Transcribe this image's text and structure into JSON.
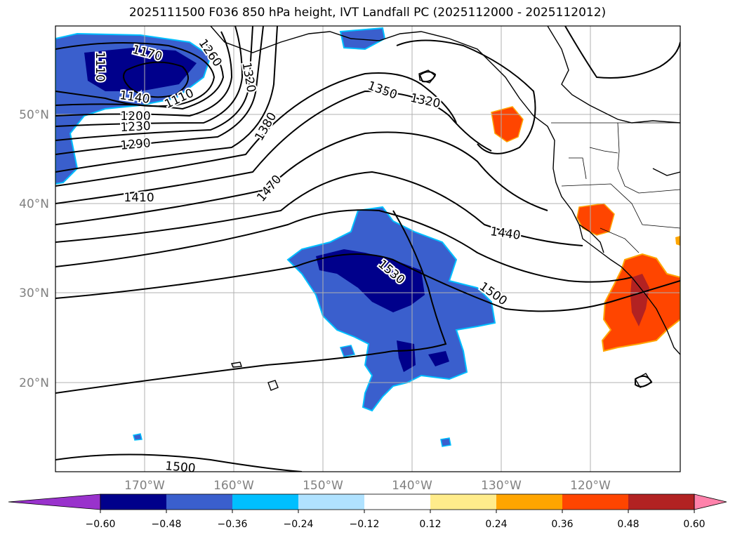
{
  "title": "2025111500 F036 850 hPa height, IVT Landfall PC (2025112000 - 2025112012)",
  "map": {
    "lon_ticks": [
      "170°W",
      "160°W",
      "150°W",
      "140°W",
      "130°W",
      "120°W"
    ],
    "lat_ticks": [
      "50°N",
      "40°N",
      "30°N",
      "20°N"
    ],
    "tick_color": "#808080",
    "grid": true
  },
  "contour_labels": [
    "1170",
    "1110",
    "1260",
    "1320",
    "1140",
    "1110",
    "1200",
    "1230",
    "1290",
    "1380",
    "1350",
    "1320",
    "1410",
    "1470",
    "1440",
    "1530",
    "1500",
    "1500"
  ],
  "colorbar": {
    "ticks": [
      "−0.60",
      "−0.48",
      "−0.36",
      "−0.24",
      "−0.12",
      "0.12",
      "0.24",
      "0.36",
      "0.48",
      "0.60"
    ],
    "colors": [
      "#9932cc",
      "#00008b",
      "#3a5fcd",
      "#00bfff",
      "#b0e2ff",
      "#ffffff",
      "#ffec8b",
      "#ffa500",
      "#ff4500",
      "#b22222",
      "#ff82ab"
    ]
  }
}
